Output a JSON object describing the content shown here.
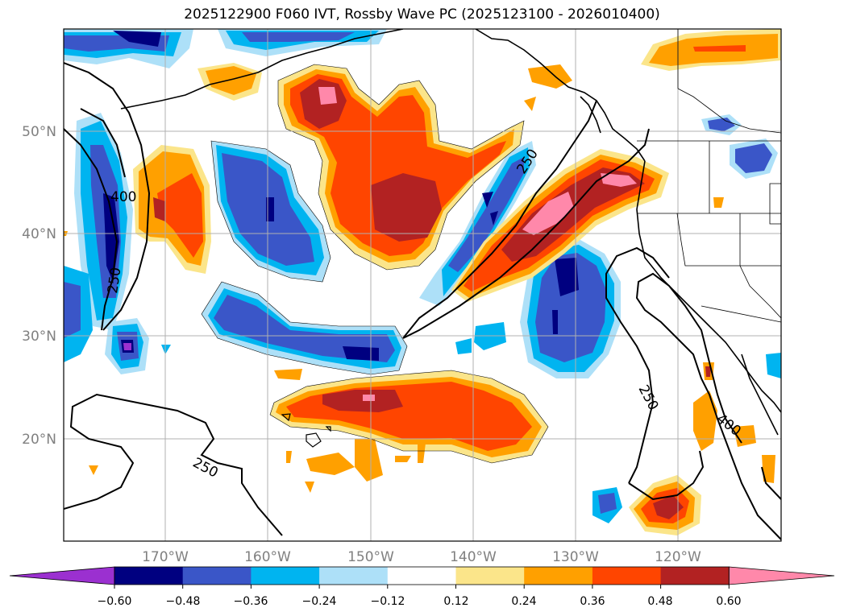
{
  "title": "2025122900 F060 IVT, Rossby Wave PC (2025123100 - 2026010400)",
  "map": {
    "lat_labels": [
      "50°N",
      "40°N",
      "30°N",
      "20°N"
    ],
    "lon_labels": [
      "170°W",
      "160°W",
      "150°W",
      "140°W",
      "130°W",
      "120°W"
    ],
    "contour_labels": [
      "400",
      "250",
      "250",
      "250",
      "250",
      "400"
    ]
  },
  "colorbar": {
    "ticks": [
      "−0.60",
      "−0.48",
      "−0.36",
      "−0.24",
      "−0.12",
      "0.12",
      "0.24",
      "0.36",
      "0.48",
      "0.60"
    ],
    "colors": [
      "#9b30d0",
      "#000080",
      "#3a56c8",
      "#00b4f0",
      "#ade0f8",
      "#ffffff",
      "#fbe58a",
      "#ffa000",
      "#ff4500",
      "#b22222",
      "#ff88aa"
    ]
  },
  "colors": {
    "pos1": "#fbe58a",
    "pos2": "#ffa000",
    "pos3": "#ff4500",
    "pos4": "#b22222",
    "pos5": "#ff88aa",
    "neg1": "#ade0f8",
    "neg2": "#00b4f0",
    "neg3": "#3a56c8",
    "neg4": "#000080",
    "neg5": "#9b30d0",
    "grid": "#b0b0b0",
    "axis_label": "#808080"
  }
}
